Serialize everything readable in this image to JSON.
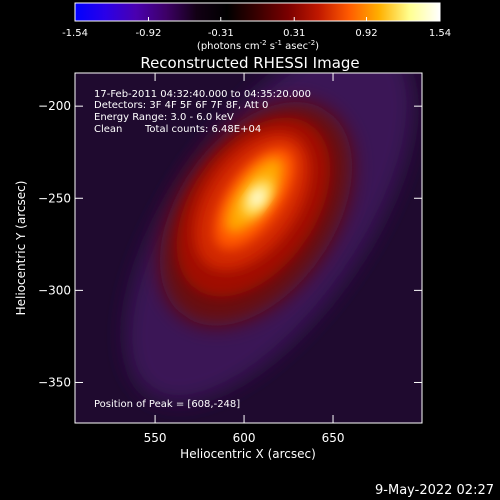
{
  "colorbar": {
    "min": -1.54,
    "max": 1.54,
    "ticks": [
      "-1.54",
      "-0.92",
      "-0.31",
      "0.31",
      "0.92",
      "1.54"
    ],
    "unit_prefix": "(photons cm",
    "unit_sup1": "-2",
    "unit_mid1": " s",
    "unit_sup2": "-1",
    "unit_mid2": " asec",
    "unit_sup3": "-2",
    "unit_suffix": ")",
    "colormap": [
      "#0000ff",
      "#2a00e8",
      "#4a00b0",
      "#3d0066",
      "#120014",
      "#000000",
      "#3a0000",
      "#7a0000",
      "#c01800",
      "#ff5a00",
      "#ffb000",
      "#ffff90",
      "#ffffff"
    ]
  },
  "title": "Reconstructed RHESSI Image",
  "info": {
    "time_range": "17-Feb-2011 04:32:40.000 to 04:35:20.000",
    "detectors": "Detectors: 3F 4F 5F 6F 7F 8F, Att 0",
    "energy_range": "Energy Range: 3.0 - 6.0 keV",
    "method": "Clean",
    "total_counts": "Total counts: 6.48E+04"
  },
  "peak_position": "Position of Peak = [608,-248]",
  "axes": {
    "xlabel": "Heliocentric X (arcsec)",
    "ylabel": "Heliocentric Y (arcsec)",
    "xlim": [
      505,
      700
    ],
    "ylim": [
      -372,
      -182
    ],
    "xticks": [
      550,
      600,
      650
    ],
    "yticks": [
      -200,
      -250,
      -300,
      -350
    ],
    "xtick_labels": [
      "550",
      "600",
      "650"
    ],
    "ytick_labels": [
      "−200",
      "−250",
      "−300",
      "−350"
    ]
  },
  "map": {
    "source": {
      "x": 606,
      "y": -250
    },
    "core_axis_angle_deg": -55,
    "background": "#1f0a2f",
    "halo_color": "#3a1356"
  },
  "timestamp": "9-May-2022 02:27"
}
